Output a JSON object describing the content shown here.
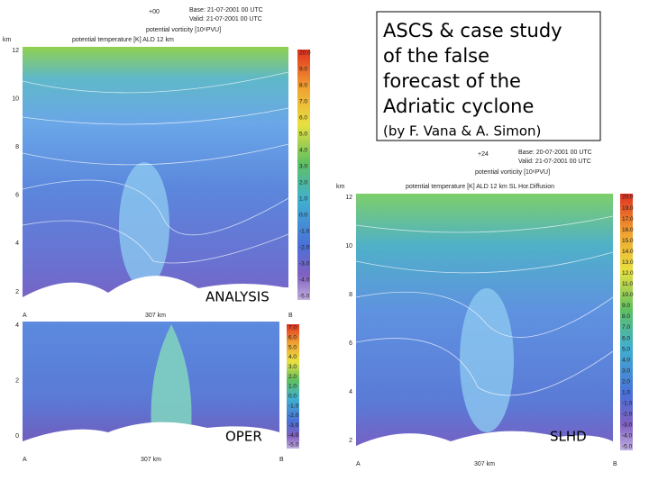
{
  "slide": {
    "title_lines": [
      "ASCS & case study",
      "of the false",
      "forecast of the",
      "Adriatic cyclone"
    ],
    "subtitle": "(by F. Vana & A. Simon)",
    "panels": [
      {
        "label": "ANALYSIS",
        "step": "+00",
        "base": "Base: 21-07-2001  00 UTC",
        "valid": "Valid: 21-07-2001  00 UTC",
        "legend": "potential vorticity [10⁶PVU]",
        "axis_title": "potential temperature [K] ALD 12 km",
        "start": "A",
        "end": "B",
        "distance": "307 km",
        "unit": "km",
        "yticks": [
          "12",
          "10",
          "8",
          "6",
          "4",
          "2"
        ],
        "colorbar": [
          "20.0",
          "9.0",
          "8.0",
          "7.0",
          "6.0",
          "5.0",
          "4.0",
          "3.0",
          "2.0",
          "1.0",
          "0.0",
          "-1.0",
          "-2.0",
          "-3.0",
          "-4.0",
          "-5.0"
        ]
      },
      {
        "label": "OPER",
        "start": "A",
        "end": "B",
        "distance": "307 km",
        "yticks": [
          "4",
          "2",
          "0"
        ],
        "colorbar": [
          "7.0",
          "6.0",
          "5.0",
          "4.0",
          "3.0",
          "2.0",
          "1.0",
          "0.0",
          "-1.0",
          "-2.0",
          "-3.0",
          "-4.0",
          "-5.0"
        ]
      },
      {
        "label": "SLHD",
        "step": "+24",
        "base": "Base: 20-07-2001  00 UTC",
        "valid": "Valid: 21-07-2001  00 UTC",
        "legend": "potential vorticity [10⁶PVU]",
        "axis_title": "potential temperature [K] ALD 12 km SL Hor.Diffusion",
        "start": "A",
        "end": "B",
        "distance": "307 km",
        "unit": "km",
        "yticks": [
          "12",
          "10",
          "8",
          "6",
          "4",
          "2"
        ],
        "colorbar": [
          "20.0",
          "19.0",
          "17.0",
          "16.0",
          "15.0",
          "14.0",
          "13.0",
          "12.0",
          "11.0",
          "10.0",
          "9.0",
          "8.0",
          "7.0",
          "6.0",
          "5.0",
          "4.0",
          "3.0",
          "2.0",
          "1.0",
          "-1.0",
          "-2.0",
          "-3.0",
          "-4.0",
          "-5.0"
        ]
      }
    ]
  }
}
